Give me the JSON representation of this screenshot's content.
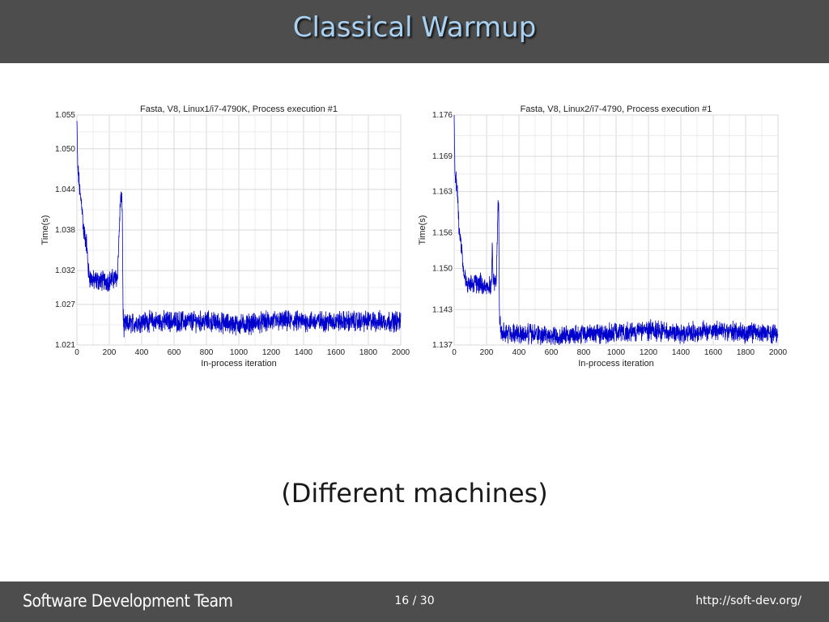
{
  "slide": {
    "title": "Classical Warmup",
    "caption": "(Different machines)"
  },
  "footer": {
    "team": "Software Development Team",
    "page": "16 / 30",
    "url": "http://soft-dev.org/"
  },
  "chart_data": [
    {
      "type": "line",
      "title": "Fasta, V8, Linux1/i7-4790K, Process execution #1",
      "xlabel": "In-process iteration",
      "ylabel": "Time(s)",
      "xlim": [
        0,
        2000
      ],
      "ylim": [
        1.021,
        1.055
      ],
      "x_ticks": [
        0,
        200,
        400,
        600,
        800,
        1000,
        1200,
        1400,
        1600,
        1800,
        2000
      ],
      "x_tick_labels": [
        "0",
        "200",
        "400",
        "600",
        "800",
        "1000",
        "1200",
        "1400",
        "1600",
        "1800",
        "2000"
      ],
      "y_ticks": [
        1.021,
        1.027,
        1.032,
        1.038,
        1.044,
        1.05,
        1.055
      ],
      "y_tick_labels": [
        "1.021",
        "1.027",
        "1.032",
        "1.038",
        "1.044",
        "1.050",
        "1.055"
      ],
      "grid": true,
      "line_color": "#0000cc",
      "series": [
        {
          "x": [
            0,
            5,
            10,
            20,
            30,
            40,
            50,
            60,
            70,
            80,
            100,
            150,
            200,
            250,
            270,
            275,
            280,
            285,
            290,
            300,
            400,
            600,
            800,
            1000,
            1200,
            1400,
            1600,
            1800,
            2000
          ],
          "y": [
            1.054,
            1.047,
            1.046,
            1.043,
            1.042,
            1.038,
            1.037,
            1.036,
            1.032,
            1.031,
            1.0305,
            1.0305,
            1.0305,
            1.031,
            1.043,
            1.042,
            1.042,
            1.026,
            1.0235,
            1.024,
            1.0245,
            1.0245,
            1.0245,
            1.024,
            1.0245,
            1.0245,
            1.0245,
            1.0245,
            1.0245
          ],
          "noise": 0.0012
        }
      ]
    },
    {
      "type": "line",
      "title": "Fasta, V8, Linux2/i7-4790, Process execution #1",
      "xlabel": "In-process iteration",
      "ylabel": "Time(s)",
      "xlim": [
        0,
        2000
      ],
      "ylim": [
        1.137,
        1.176
      ],
      "x_ticks": [
        0,
        200,
        400,
        600,
        800,
        1000,
        1200,
        1400,
        1600,
        1800,
        2000
      ],
      "x_tick_labels": [
        "0",
        "200",
        "400",
        "600",
        "800",
        "1000",
        "1200",
        "1400",
        "1600",
        "1800",
        "2000"
      ],
      "y_ticks": [
        1.137,
        1.143,
        1.15,
        1.156,
        1.163,
        1.169,
        1.176
      ],
      "y_tick_labels": [
        "1.137",
        "1.143",
        "1.150",
        "1.156",
        "1.163",
        "1.169",
        "1.176"
      ],
      "grid": true,
      "line_color": "#0000cc",
      "series": [
        {
          "x": [
            0,
            5,
            10,
            20,
            30,
            40,
            50,
            60,
            70,
            80,
            100,
            150,
            200,
            230,
            235,
            240,
            260,
            270,
            275,
            280,
            290,
            300,
            400,
            600,
            800,
            1000,
            1200,
            1400,
            1600,
            1800,
            2000
          ],
          "y": [
            1.175,
            1.167,
            1.165,
            1.163,
            1.157,
            1.155,
            1.152,
            1.149,
            1.148,
            1.147,
            1.1475,
            1.1475,
            1.147,
            1.147,
            1.154,
            1.148,
            1.147,
            1.161,
            1.16,
            1.142,
            1.139,
            1.139,
            1.139,
            1.1385,
            1.139,
            1.139,
            1.1395,
            1.139,
            1.1395,
            1.139,
            1.139
          ],
          "noise": 0.0013
        }
      ]
    }
  ]
}
